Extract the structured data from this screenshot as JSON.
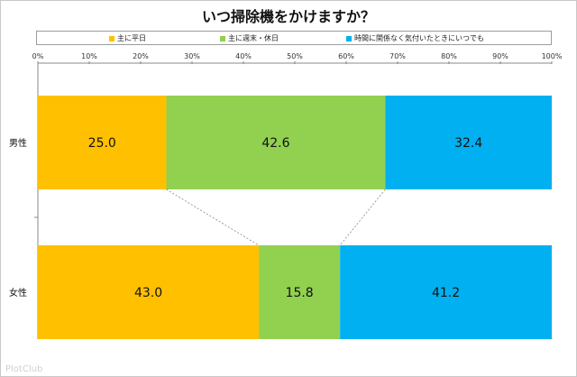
{
  "chart_data": {
    "type": "bar",
    "stacked_percent": true,
    "orientation": "horizontal",
    "title": "いつ掃除機をかけますか？",
    "categories": [
      "男性",
      "女性"
    ],
    "series": [
      {
        "name": "主に平日",
        "color": "#ffc000",
        "values": [
          25.0,
          43.0
        ]
      },
      {
        "name": "主に週末・休日",
        "color": "#92d050",
        "values": [
          42.6,
          15.8
        ]
      },
      {
        "name": "時間に関係なく気付いたときにいつでも",
        "color": "#00b0f0",
        "values": [
          32.4,
          41.2
        ]
      }
    ],
    "xlim": [
      0,
      100
    ],
    "x_ticks": [
      "0%",
      "10%",
      "20%",
      "30%",
      "40%",
      "50%",
      "60%",
      "70%",
      "80%",
      "90%",
      "100%"
    ],
    "legend_position": "top",
    "series_lines": true
  },
  "watermark": "PlotClub"
}
